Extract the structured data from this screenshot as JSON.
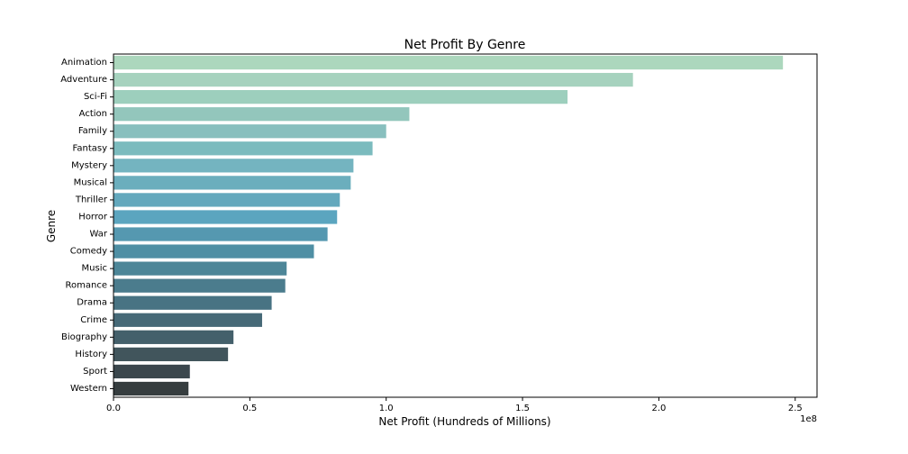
{
  "chart_data": {
    "type": "bar",
    "orientation": "horizontal",
    "title": "Net Profit By Genre",
    "xlabel": "Net Profit (Hundreds of Millions)",
    "ylabel": "Genre",
    "x_offset_label": "1e8",
    "xlim": [
      0,
      258000000
    ],
    "xticks": [
      0,
      50000000,
      100000000,
      150000000,
      200000000,
      250000000
    ],
    "xtick_labels": [
      "0.0",
      "0.5",
      "1.0",
      "1.5",
      "2.0",
      "2.5"
    ],
    "grid": false,
    "categories": [
      "Animation",
      "Adventure",
      "Sci-Fi",
      "Action",
      "Family",
      "Fantasy",
      "Mystery",
      "Musical",
      "Thriller",
      "Horror",
      "War",
      "Comedy",
      "Music",
      "Romance",
      "Drama",
      "Crime",
      "Biography",
      "History",
      "Sport",
      "Western"
    ],
    "values": [
      245500000,
      190500000,
      166500000,
      108500000,
      100000000,
      95000000,
      88000000,
      87000000,
      83000000,
      82000000,
      78500000,
      73500000,
      63500000,
      63000000,
      58000000,
      54500000,
      44000000,
      42000000,
      28000000,
      27500000
    ],
    "colors": [
      "#acd7bd",
      "#a6d2be",
      "#9dcfbd",
      "#93c6bc",
      "#88bfbe",
      "#7bbbbe",
      "#74b4c0",
      "#6baebd",
      "#63a8bd",
      "#5ba5bf",
      "#5598b0",
      "#4f8fa4",
      "#4d8698",
      "#4b7c8d",
      "#487383",
      "#466977",
      "#44606b",
      "#41555c",
      "#3b474d",
      "#363d3f"
    ]
  }
}
